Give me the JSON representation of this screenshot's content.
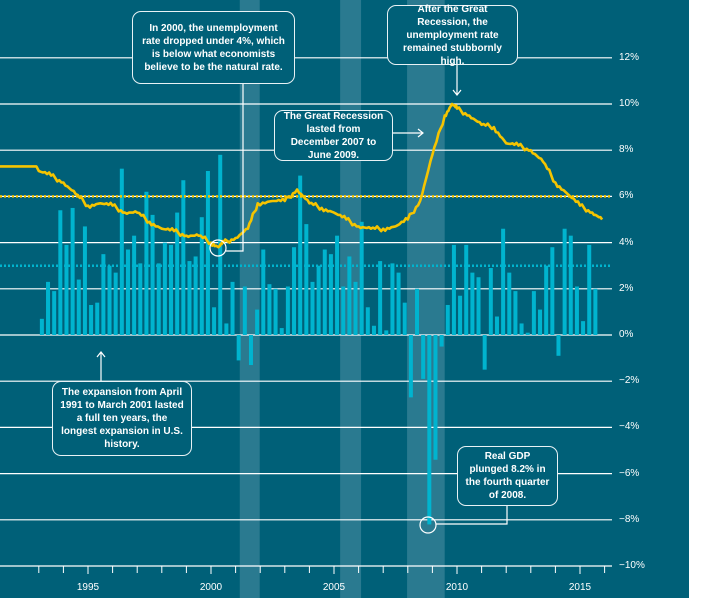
{
  "chart_data": {
    "type": "bar+line",
    "title": "",
    "xlabel": "",
    "ylabel": "",
    "ylim": [
      -10,
      12
    ],
    "xlim": [
      1991.4,
      2016.1
    ],
    "y_ticks": [
      "12%",
      "10%",
      "8%",
      "6%",
      "4%",
      "2%",
      "0%",
      "−2%",
      "−4%",
      "−6%",
      "−8%",
      "−10%"
    ],
    "y_tick_values": [
      12,
      10,
      8,
      6,
      4,
      2,
      0,
      -2,
      -4,
      -6,
      -8,
      -10
    ],
    "x_ticks": [
      "1995",
      "2000",
      "2005",
      "2010",
      "2015"
    ],
    "x_tick_values": [
      1995,
      2000,
      2005,
      2010,
      2015
    ],
    "grid": true,
    "colors": {
      "background": "#006078",
      "bars": "#00b4cf",
      "line": "#f5c400",
      "band": "#2a7a90",
      "grid": "#ffffff"
    },
    "gdp_bars": {
      "start_year": 1993,
      "frequency": "quarterly",
      "values": [
        0.7,
        2.3,
        1.9,
        5.4,
        3.9,
        5.5,
        2.4,
        4.7,
        1.3,
        1.4,
        3.5,
        3.0,
        2.7,
        7.2,
        3.7,
        4.3,
        3.1,
        6.2,
        5.2,
        3.1,
        4.0,
        3.9,
        5.3,
        6.7,
        3.2,
        3.4,
        5.1,
        7.1,
        1.2,
        7.8,
        0.5,
        2.3,
        -1.1,
        2.1,
        -1.3,
        1.1,
        3.7,
        2.2,
        2.0,
        0.3,
        2.1,
        3.8,
        6.9,
        4.8,
        2.3,
        3.0,
        3.7,
        3.5,
        4.3,
        2.1,
        3.4,
        2.3,
        4.9,
        1.2,
        0.4,
        3.2,
        0.2,
        3.1,
        2.7,
        1.4,
        -2.7,
        2.0,
        -1.9,
        -8.2,
        -5.4,
        -0.5,
        1.3,
        3.9,
        1.7,
        3.9,
        2.7,
        2.5,
        -1.5,
        2.9,
        0.8,
        4.6,
        2.7,
        1.9,
        0.5,
        0.1,
        1.9,
        1.1,
        3.0,
        3.8,
        -0.9,
        4.6,
        4.3,
        2.1,
        0.6,
        3.9,
        2.0
      ]
    },
    "unemployment_line": {
      "x": [
        1991.4,
        1992.9,
        1993.0,
        1993.5,
        1994.0,
        1994.5,
        1995.0,
        1995.5,
        1996.0,
        1996.5,
        1997.0,
        1997.5,
        1998.0,
        1998.5,
        1999.0,
        1999.5,
        2000.0,
        2000.3,
        2000.5,
        2001.0,
        2001.5,
        2001.9,
        2002.5,
        2003.0,
        2003.5,
        2004.0,
        2004.5,
        2005.0,
        2005.5,
        2006.0,
        2006.5,
        2007.0,
        2007.5,
        2008.0,
        2008.5,
        2009.0,
        2009.5,
        2009.8,
        2010.0,
        2010.5,
        2011.0,
        2011.5,
        2012.0,
        2012.5,
        2013.0,
        2013.5,
        2014.0,
        2014.5,
        2015.0,
        2015.5,
        2015.9
      ],
      "y": [
        7.3,
        7.3,
        7.1,
        6.9,
        6.6,
        6.1,
        5.6,
        5.7,
        5.6,
        5.3,
        5.3,
        4.9,
        4.6,
        4.5,
        4.3,
        4.3,
        4.0,
        3.8,
        4.0,
        4.2,
        4.6,
        5.7,
        5.8,
        5.8,
        6.3,
        5.7,
        5.5,
        5.3,
        5.0,
        4.7,
        4.6,
        4.6,
        4.7,
        5.0,
        5.8,
        7.8,
        9.5,
        10.0,
        9.8,
        9.5,
        9.1,
        9.0,
        8.3,
        8.2,
        8.0,
        7.5,
        6.6,
        6.1,
        5.6,
        5.3,
        5.0
      ]
    },
    "reference_lines": [
      {
        "value": 6,
        "color": "#f5c400",
        "style": "dotted"
      },
      {
        "value": 3,
        "color": "#00b4cf",
        "style": "dotted"
      }
    ],
    "shaded_bands": [
      [
        2001.17,
        2001.98
      ],
      [
        2005.25,
        2006.1
      ],
      [
        2007.97,
        2009.5
      ]
    ],
    "annotations": [
      "In 2000, the unemployment rate dropped under 4%, which is below what economists believe to be the natural rate.",
      "After the Great Recession, the unemployment rate remained stubbornly high.",
      "The Great Recession lasted from December 2007 to June 2009.",
      "The expansion from April 1991 to March 2001 lasted a full ten years, the longest expansion in U.S. history.",
      "Real GDP plunged 8.2% in the fourth quarter of 2008."
    ]
  }
}
